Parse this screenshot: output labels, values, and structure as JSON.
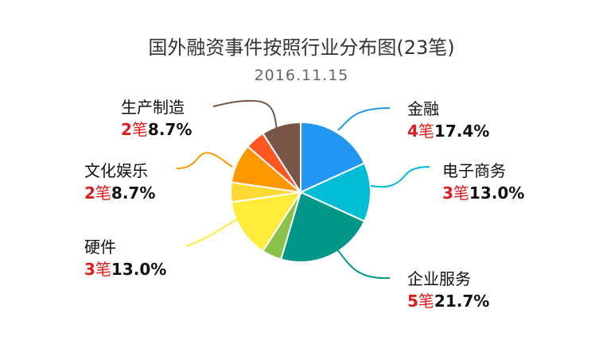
{
  "chart_data": {
    "type": "pie",
    "title": "国外融资事件按照行业分布图(23笔)",
    "subtitle": "2016.11.15",
    "unit_label": "笔",
    "slices": [
      {
        "label": "金融",
        "count": 4,
        "percent": "17.4%",
        "color": "#2196f3"
      },
      {
        "label": "电子商务",
        "count": 3,
        "percent": "13.0%",
        "color": "#00bcd4"
      },
      {
        "label": "企业服务",
        "count": 5,
        "percent": "21.7%",
        "color": "#009688"
      },
      {
        "label": "",
        "count": 1,
        "percent": "",
        "color": "#8bc34a"
      },
      {
        "label": "硬件",
        "count": 3,
        "percent": "13.0%",
        "color": "#ffeb3b"
      },
      {
        "label": "",
        "count": 1,
        "percent": "",
        "color": "#fdd835"
      },
      {
        "label": "文化娱乐",
        "count": 2,
        "percent": "8.7%",
        "color": "#ff9800"
      },
      {
        "label": "",
        "count": 1,
        "percent": "",
        "color": "#ff5722"
      },
      {
        "label": "生产制造",
        "count": 2,
        "percent": "8.7%",
        "color": "#795548"
      }
    ]
  }
}
